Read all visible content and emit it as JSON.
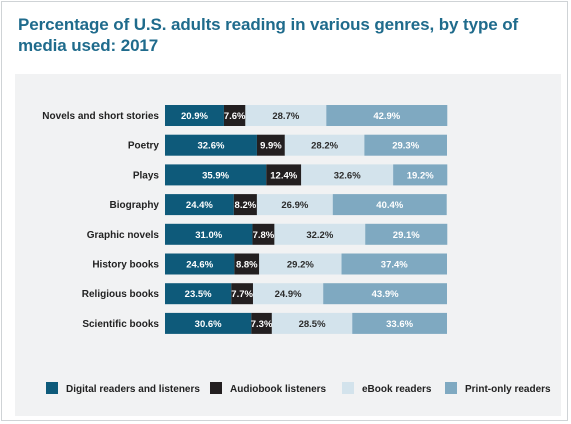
{
  "title": "Percentage of U.S. adults reading in various genres, by type of media used: 2017",
  "chart_data": {
    "type": "bar",
    "orientation": "horizontal",
    "stacked": true,
    "title": "Percentage of U.S. adults reading in various genres, by type of media used: 2017",
    "categories": [
      "Novels and short stories",
      "Poetry",
      "Plays",
      "Biography",
      "Graphic novels",
      "History books",
      "Religious books",
      "Scientific books"
    ],
    "series": [
      {
        "name": "Digital readers and listeners",
        "color": "#0e5a7a",
        "text_color": "#ffffff",
        "values": [
          20.9,
          32.6,
          35.9,
          24.4,
          31.0,
          24.6,
          23.5,
          30.6
        ],
        "labels": [
          "20.9%",
          "32.6%",
          "35.9%",
          "24.4%",
          "31.0%",
          "24.6%",
          "23.5%",
          "30.6%"
        ]
      },
      {
        "name": "Audiobook listeners",
        "color": "#231f20",
        "text_color": "#ffffff",
        "values": [
          7.6,
          9.9,
          12.4,
          8.2,
          7.8,
          8.8,
          7.7,
          7.3
        ],
        "labels": [
          "7.6%",
          "9.9%",
          "12.4%",
          "8.2%",
          "7.8%",
          "8.8%",
          "7.7%",
          "7.3%"
        ]
      },
      {
        "name": "eBook readers",
        "color": "#d3e3ec",
        "text_color": "#2b2b2b",
        "values": [
          28.7,
          28.2,
          32.6,
          26.9,
          32.2,
          29.2,
          24.9,
          28.5
        ],
        "labels": [
          "28.7%",
          "28.2%",
          "32.6%",
          "26.9%",
          "32.2%",
          "29.2%",
          "24.9%",
          "28.5%"
        ]
      },
      {
        "name": "Print-only readers",
        "color": "#7fa9c1",
        "text_color": "#ffffff",
        "values": [
          42.9,
          29.3,
          19.2,
          40.4,
          29.1,
          37.4,
          43.9,
          33.6
        ],
        "labels": [
          "42.9%",
          "29.3%",
          "19.2%",
          "40.4%",
          "29.1%",
          "37.4%",
          "43.9%",
          "33.6%"
        ]
      }
    ],
    "xlim": [
      0,
      100
    ],
    "grid": false,
    "legend_position": "bottom"
  }
}
